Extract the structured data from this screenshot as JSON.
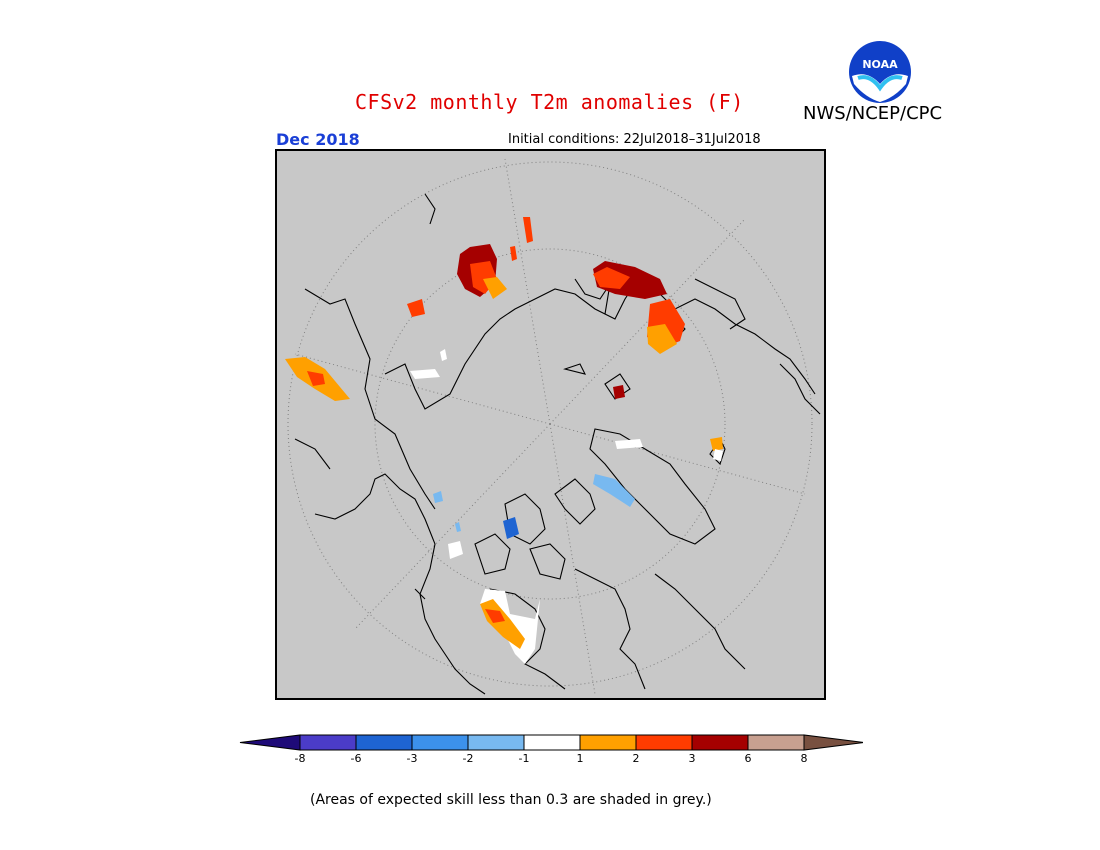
{
  "header": {
    "title": "CFSv2 monthly T2m anomalies (F)",
    "agency": "NWS/NCEP/CPC",
    "logo_text": "NOAA",
    "month": "Dec 2018",
    "initial_conditions": "Initial conditions: 22Jul2018–31Jul2018"
  },
  "colors": {
    "title": "#e00000",
    "month": "#1a3fd6",
    "map_background": "#c8c8c8"
  },
  "legend": {
    "bins": [
      {
        "color": "#1e0a78"
      },
      {
        "color": "#4b3cc8"
      },
      {
        "color": "#1e64d2"
      },
      {
        "color": "#3c91eb"
      },
      {
        "color": "#78b9f0"
      },
      {
        "color": "#ffffff"
      },
      {
        "color": "#ffa000"
      },
      {
        "color": "#ff3c00"
      },
      {
        "color": "#a50000"
      },
      {
        "color": "#c8a090"
      },
      {
        "color": "#785040"
      }
    ],
    "ticks": [
      "-8",
      "-6",
      "-3",
      "-2",
      "-1",
      "1",
      "2",
      "3",
      "6",
      "8"
    ]
  },
  "note": "(Areas of expected skill less than 0.3 are shaded in grey.)"
}
